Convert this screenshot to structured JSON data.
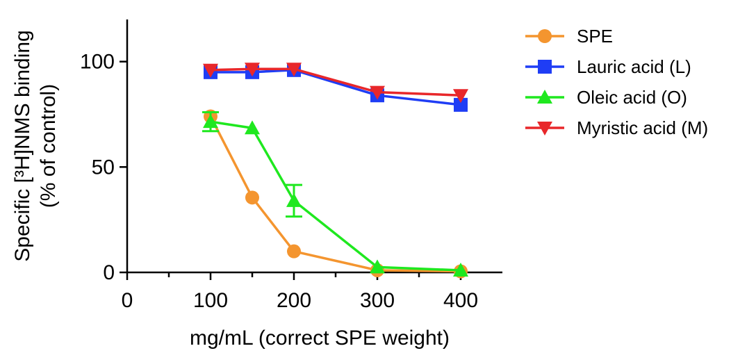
{
  "chart_data": {
    "type": "line",
    "xlabel": "mg/mL (correct SPE weight)",
    "ylabel_line1": "Specific [³H]NMS binding",
    "ylabel_line2": "(% of control)",
    "xlim": [
      0,
      450
    ],
    "ylim": [
      0,
      120
    ],
    "xticks": [
      0,
      100,
      200,
      300,
      400
    ],
    "yticks": [
      0,
      50,
      100
    ],
    "x_minor_ticks": [
      50,
      150,
      250,
      350
    ],
    "legend_position": "top-right",
    "grid": false,
    "series": [
      {
        "name": "SPE",
        "color": "#f4952f",
        "marker": "circle",
        "x": [
          100,
          150,
          200,
          300,
          400
        ],
        "y": [
          74,
          35.5,
          10,
          1,
          0.5
        ],
        "err": [
          0,
          0,
          0,
          0,
          0
        ]
      },
      {
        "name": "Lauric acid (L)",
        "color": "#1f3df5",
        "marker": "square",
        "x": [
          100,
          150,
          200,
          300,
          400
        ],
        "y": [
          95,
          95,
          96,
          84,
          79.5
        ],
        "err": [
          0,
          0,
          0,
          0,
          0
        ]
      },
      {
        "name": "Oleic acid (O)",
        "color": "#1fe81f",
        "marker": "triangle-up",
        "x": [
          100,
          150,
          200,
          300,
          400
        ],
        "y": [
          71.5,
          68.5,
          34,
          2.5,
          1
        ],
        "err": [
          4.5,
          0,
          7.5,
          0,
          0
        ]
      },
      {
        "name": "Myristic acid (M)",
        "color": "#e8272a",
        "marker": "triangle-down",
        "x": [
          100,
          150,
          200,
          300,
          400
        ],
        "y": [
          96,
          96.5,
          96.5,
          85.5,
          84
        ],
        "err": [
          0,
          0,
          0,
          0,
          0
        ]
      }
    ]
  }
}
